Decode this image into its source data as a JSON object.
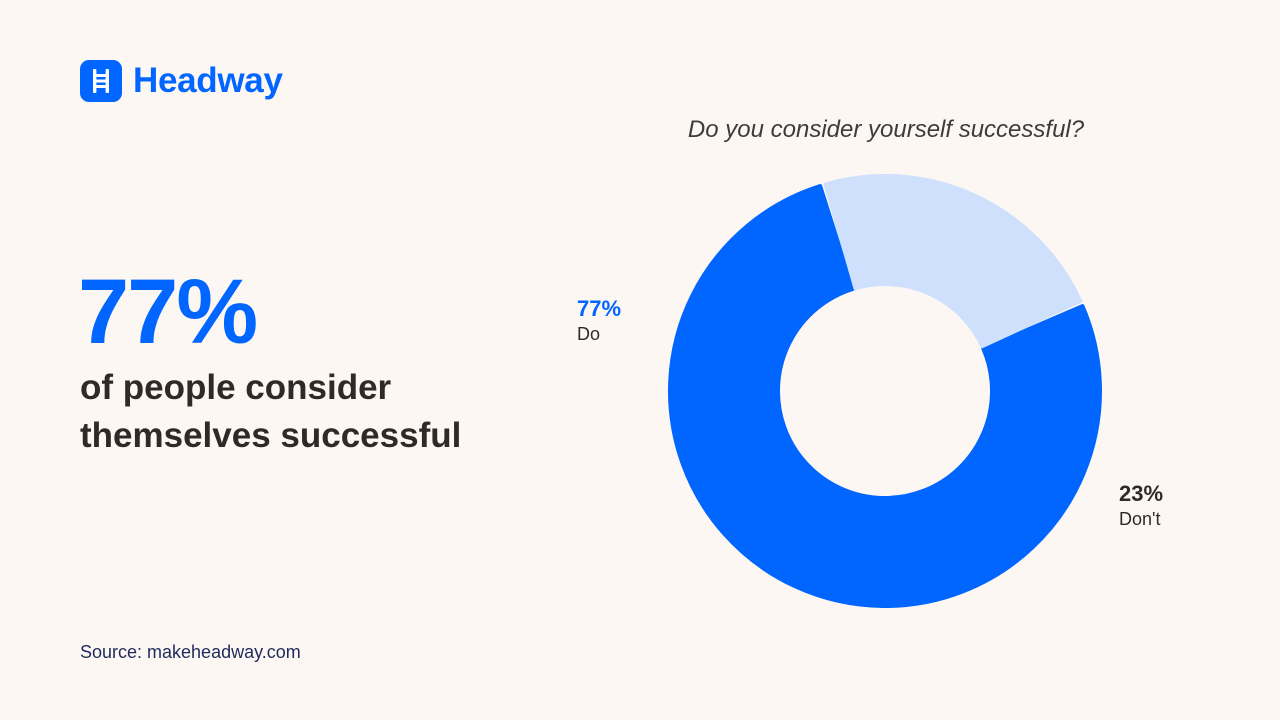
{
  "brand": {
    "name": "Headway",
    "color": "#0066ff",
    "icon": "ladder-icon"
  },
  "headline": {
    "percent": "77%",
    "text": "of people consider themselves successful"
  },
  "source": "Source: makeheadway.com",
  "chart_data": {
    "type": "pie",
    "donut": true,
    "title": "Do you consider yourself successful?",
    "categories": [
      "Do",
      "Don't"
    ],
    "values": [
      77,
      23
    ],
    "value_labels": [
      "77%",
      "23%"
    ],
    "colors": [
      "#0066ff",
      "#cfe0fd"
    ],
    "label_colors": [
      "#0066ff",
      "#2e2a27"
    ]
  }
}
